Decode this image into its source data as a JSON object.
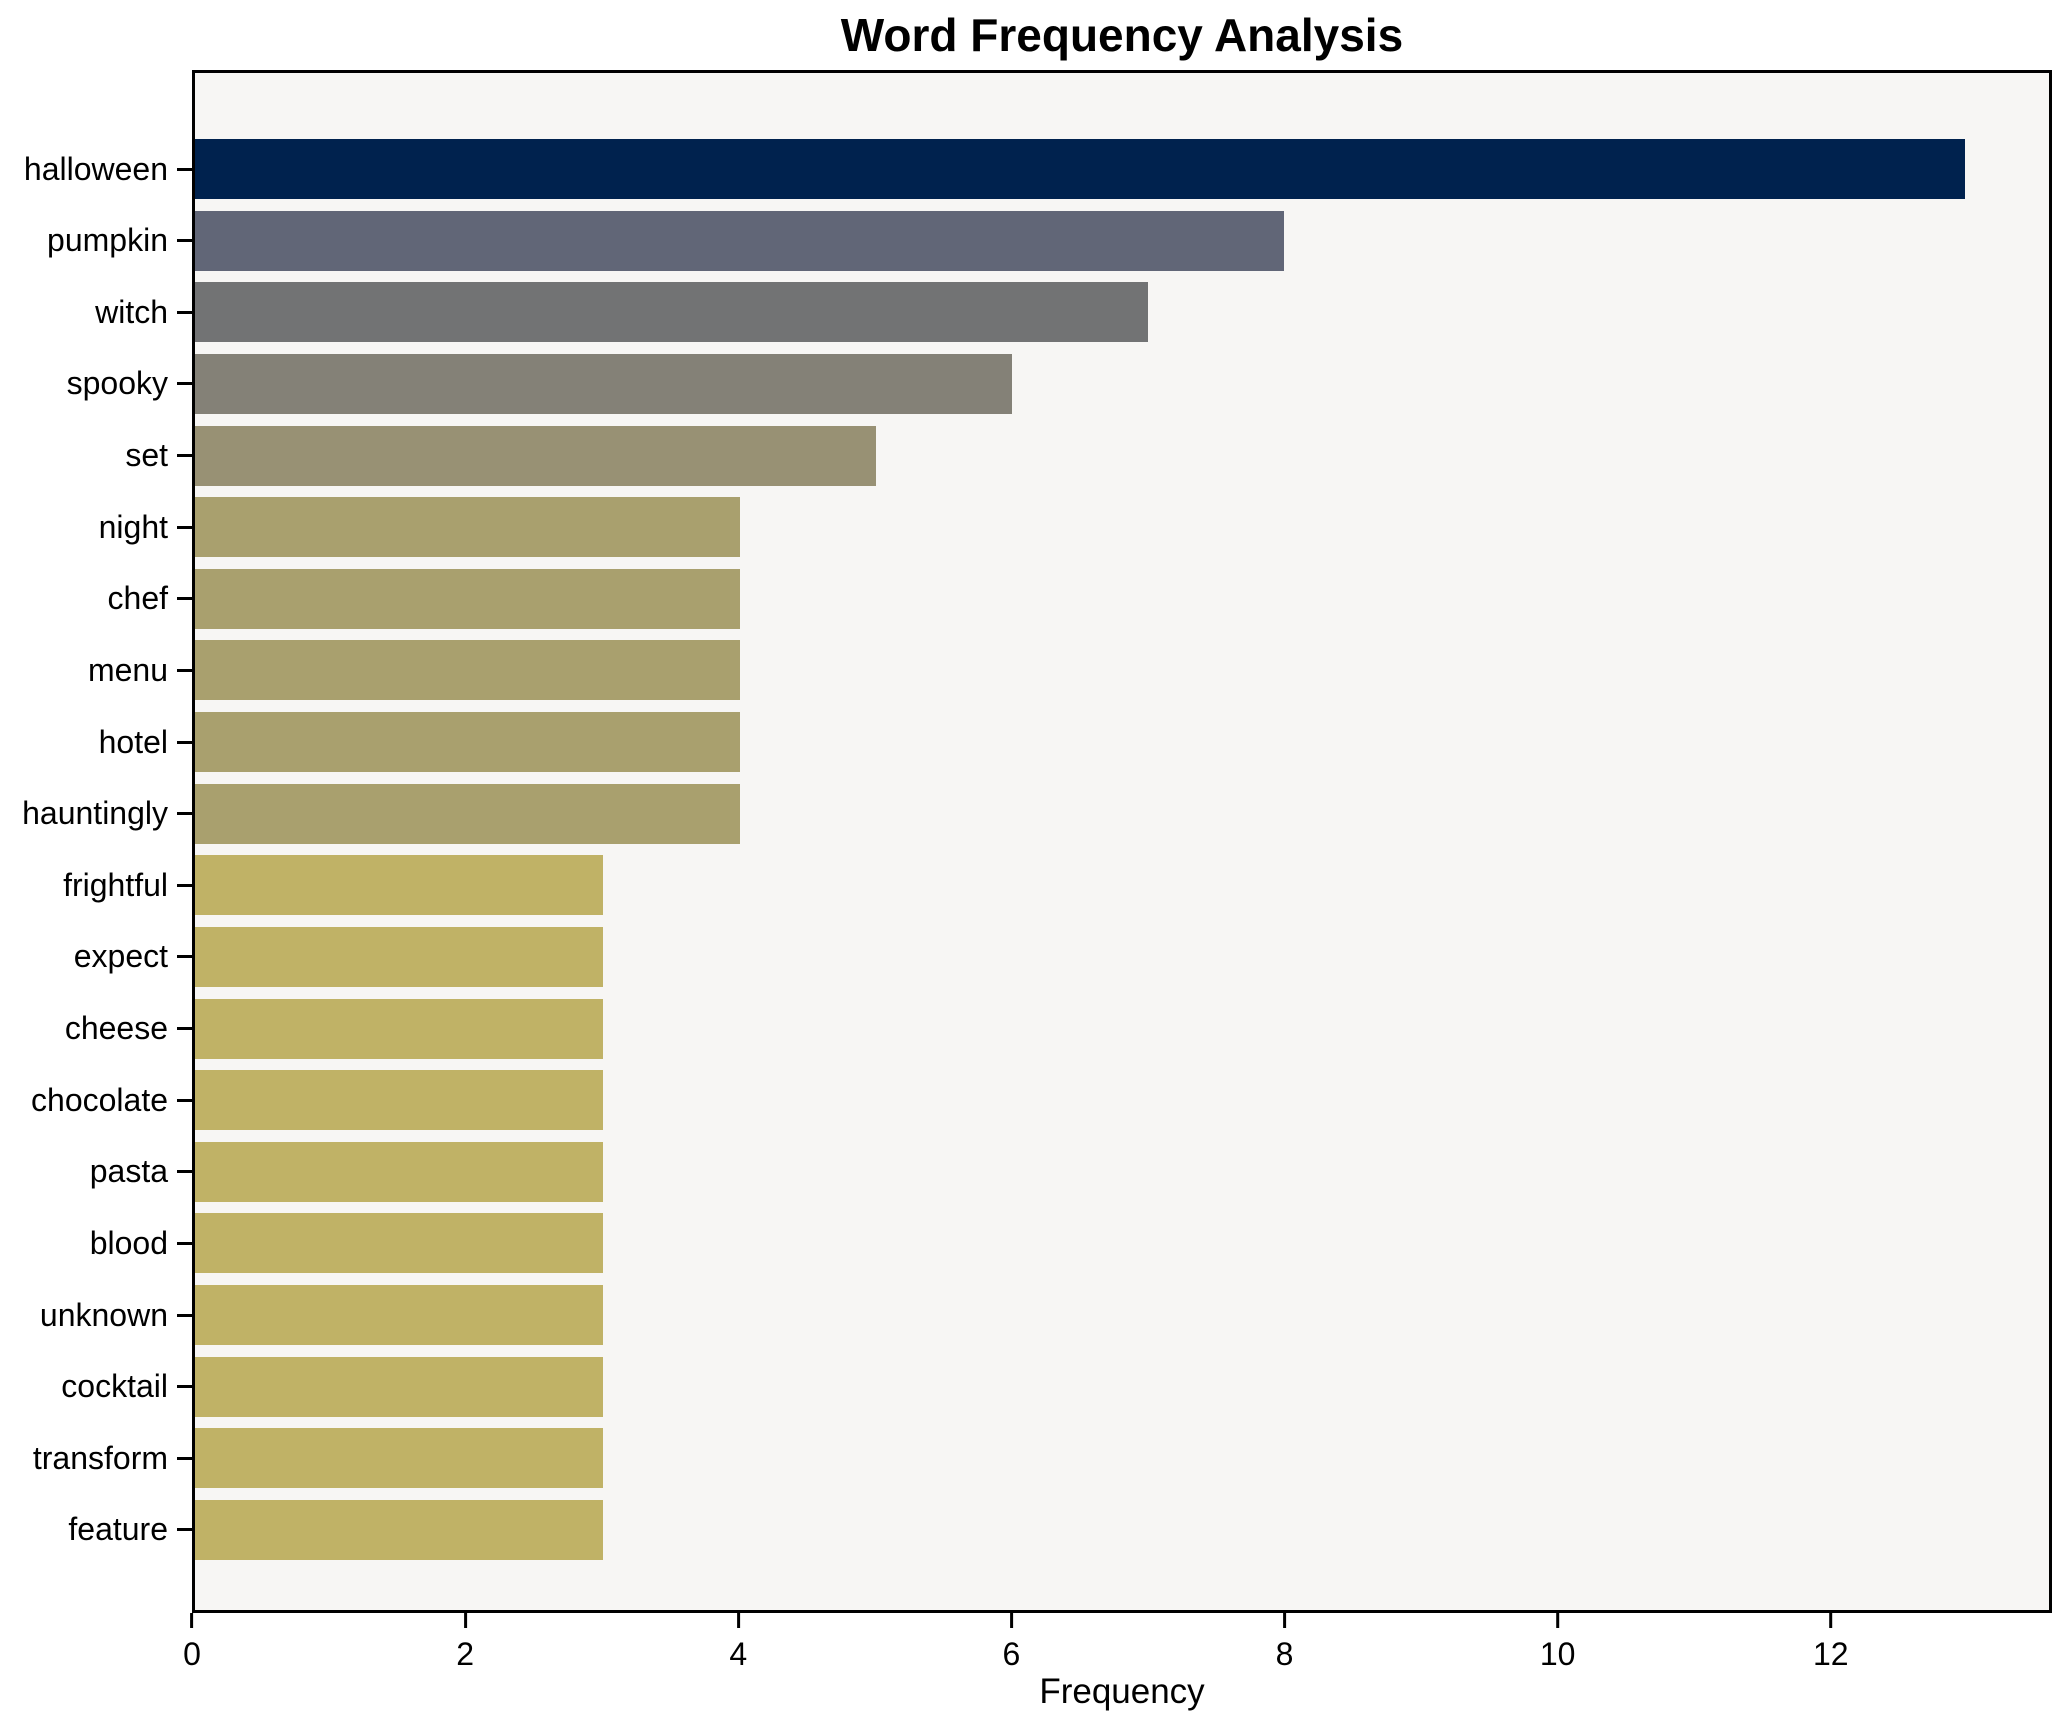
{
  "chart_data": {
    "type": "bar",
    "orientation": "horizontal",
    "title": "Word Frequency Analysis",
    "xlabel": "Frequency",
    "categories": [
      "halloween",
      "pumpkin",
      "witch",
      "spooky",
      "set",
      "night",
      "chef",
      "menu",
      "hotel",
      "hauntingly",
      "frightful",
      "expect",
      "cheese",
      "chocolate",
      "pasta",
      "blood",
      "unknown",
      "cocktail",
      "transform",
      "feature"
    ],
    "values": [
      13,
      8,
      7,
      6,
      5,
      4,
      4,
      4,
      4,
      4,
      3,
      3,
      3,
      3,
      3,
      3,
      3,
      3,
      3,
      3
    ],
    "bar_colors": [
      "#00224e",
      "#616677",
      "#727374",
      "#848177",
      "#989174",
      "#a9a06e",
      "#a9a06e",
      "#a9a06e",
      "#a9a06e",
      "#a9a06e",
      "#c0b266",
      "#c0b266",
      "#c0b266",
      "#c0b266",
      "#c0b266",
      "#c0b266",
      "#c0b266",
      "#c0b266",
      "#c0b266",
      "#c0b266"
    ],
    "xticks": [
      0,
      2,
      4,
      6,
      8,
      10,
      12
    ],
    "xlim": [
      0,
      13.62
    ],
    "grid": false,
    "legend": false,
    "plot_background": "#f7f6f4",
    "axis_color": "#000000"
  }
}
